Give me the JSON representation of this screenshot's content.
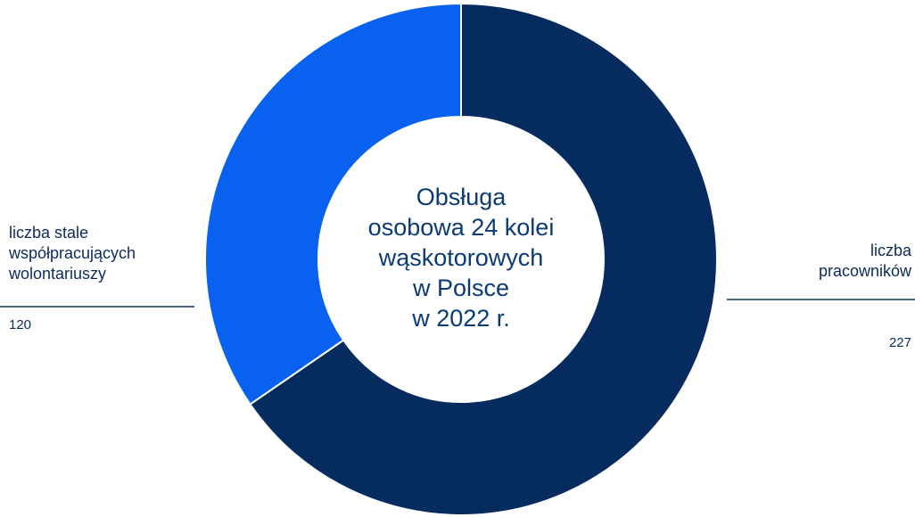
{
  "chart_data": {
    "type": "donut",
    "title": [
      "Obsługa",
      "osobowa 24 kolei",
      "wąskotorowych",
      "w Polsce",
      "w 2022 r."
    ],
    "categories": [
      "liczba pracowników",
      "liczba stale współpracujących wolontariuszy"
    ],
    "values": [
      227,
      120
    ],
    "colors": [
      "#062c5f",
      "#0962ef"
    ]
  }
}
